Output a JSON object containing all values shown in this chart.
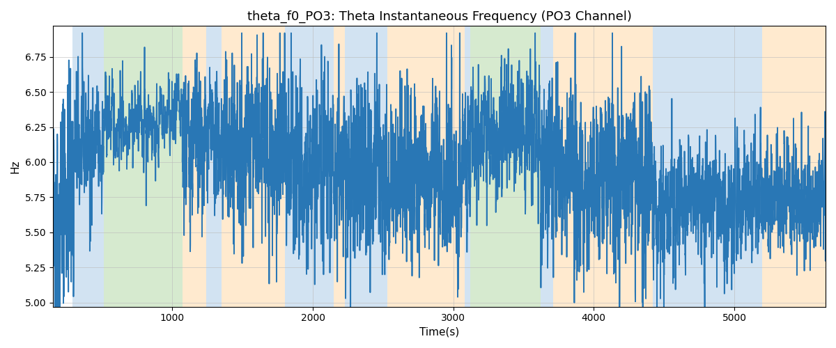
{
  "title": "theta_f0_PO3: Theta Instantaneous Frequency (PO3 Channel)",
  "xlabel": "Time(s)",
  "ylabel": "Hz",
  "xlim": [
    150,
    5650
  ],
  "ylim": [
    4.97,
    6.97
  ],
  "line_color": "#2977b5",
  "line_width": 1.3,
  "bg_regions": [
    {
      "xmin": 290,
      "xmax": 510,
      "color": "#aecce8",
      "alpha": 0.55
    },
    {
      "xmin": 510,
      "xmax": 1070,
      "color": "#b5d9a8",
      "alpha": 0.55
    },
    {
      "xmin": 1070,
      "xmax": 1240,
      "color": "#ffd9a8",
      "alpha": 0.55
    },
    {
      "xmin": 1240,
      "xmax": 1350,
      "color": "#aecce8",
      "alpha": 0.55
    },
    {
      "xmin": 1350,
      "xmax": 1800,
      "color": "#ffd9a8",
      "alpha": 0.55
    },
    {
      "xmin": 1800,
      "xmax": 2150,
      "color": "#aecce8",
      "alpha": 0.55
    },
    {
      "xmin": 2150,
      "xmax": 2230,
      "color": "#ffd9a8",
      "alpha": 0.55
    },
    {
      "xmin": 2230,
      "xmax": 2530,
      "color": "#aecce8",
      "alpha": 0.55
    },
    {
      "xmin": 2530,
      "xmax": 3080,
      "color": "#ffd9a8",
      "alpha": 0.55
    },
    {
      "xmin": 3080,
      "xmax": 3120,
      "color": "#aecce8",
      "alpha": 0.55
    },
    {
      "xmin": 3120,
      "xmax": 3620,
      "color": "#b5d9a8",
      "alpha": 0.55
    },
    {
      "xmin": 3620,
      "xmax": 3710,
      "color": "#aecce8",
      "alpha": 0.55
    },
    {
      "xmin": 3710,
      "xmax": 4420,
      "color": "#ffd9a8",
      "alpha": 0.55
    },
    {
      "xmin": 4420,
      "xmax": 5120,
      "color": "#aecce8",
      "alpha": 0.55
    },
    {
      "xmin": 5120,
      "xmax": 5200,
      "color": "#aecce8",
      "alpha": 0.55
    },
    {
      "xmin": 5200,
      "xmax": 5650,
      "color": "#ffd9a8",
      "alpha": 0.55
    }
  ],
  "seed": 42,
  "n_points": 5500,
  "t_start": 150,
  "t_end": 5650,
  "grid_color": "#bbbbbb",
  "grid_alpha": 0.6,
  "yticks": [
    5.0,
    5.25,
    5.5,
    5.75,
    6.0,
    6.25,
    6.5,
    6.75
  ],
  "xticks": [
    1000,
    2000,
    3000,
    4000,
    5000
  ],
  "title_fontsize": 13,
  "label_fontsize": 11,
  "tick_fontsize": 10
}
